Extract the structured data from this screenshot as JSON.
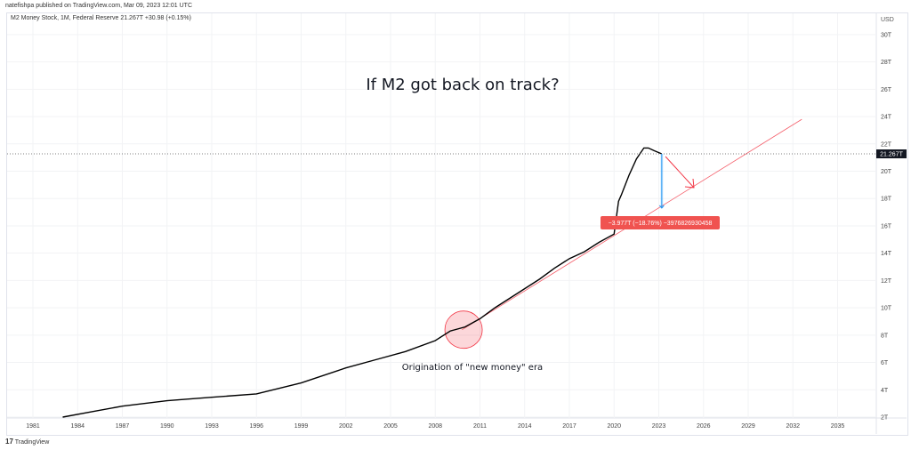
{
  "header": {
    "published": "natefishpa published on TradingView.com, Mar 09, 2023 12:01 UTC",
    "legend": "M2 Money Stock, 1M, Federal Reserve  21.267T  +30.98 (+0.15%)"
  },
  "footer": {
    "logo_mark": "17",
    "logo_text": "TradingView"
  },
  "colors": {
    "series": "#000000",
    "trend": "#f23645",
    "measure": "#2196f3",
    "label_bg": "#f05350"
  },
  "chart_data": {
    "type": "line",
    "title": "M2 Money Stock, 1M, Federal Reserve",
    "currency": "USD",
    "last_value_label": "21.267T",
    "x_ticks": [
      "1981",
      "1984",
      "1987",
      "1990",
      "1993",
      "1996",
      "1999",
      "2002",
      "2005",
      "2008",
      "2011",
      "2014",
      "2017",
      "2020",
      "2023",
      "2026",
      "2029",
      "2032",
      "2035"
    ],
    "y_ticks": [
      "2T",
      "4T",
      "6T",
      "8T",
      "10T",
      "12T",
      "14T",
      "16T",
      "18T",
      "20T",
      "22T",
      "24T",
      "26T",
      "28T",
      "30T"
    ],
    "xlim": [
      1981,
      2038
    ],
    "ylim": [
      2,
      30
    ],
    "series": [
      {
        "name": "M2 (T USD)",
        "x": [
          1983,
          1985,
          1987,
          1990,
          1993,
          1996,
          1999,
          2002,
          2004,
          2006,
          2008,
          2009,
          2010,
          2011,
          2012,
          2013,
          2014,
          2015,
          2016,
          2017,
          2018,
          2019,
          2020,
          2020.3,
          2020.5,
          2021,
          2021.5,
          2022,
          2022.3,
          2022.7,
          2023.2
        ],
        "y": [
          2.0,
          2.4,
          2.8,
          3.2,
          3.45,
          3.7,
          4.5,
          5.6,
          6.2,
          6.8,
          7.6,
          8.3,
          8.6,
          9.2,
          10.0,
          10.7,
          11.4,
          12.1,
          12.9,
          13.6,
          14.1,
          14.8,
          15.4,
          17.8,
          18.3,
          19.7,
          20.9,
          21.7,
          21.7,
          21.5,
          21.27
        ]
      }
    ],
    "trendline": {
      "x": [
        2009.8,
        2032.6
      ],
      "y": [
        8.4,
        23.8
      ]
    },
    "annotations": {
      "title": "If M2 got back on track?",
      "circle_note": "Origination of \"new money\" era",
      "measure_label": "−3.977T (−18.76%) −3976826930458",
      "measure_from": 21.27,
      "measure_to": 17.3,
      "measure_year": 2023.2,
      "circle_year": 2009.9,
      "circle_value": 8.4
    }
  }
}
